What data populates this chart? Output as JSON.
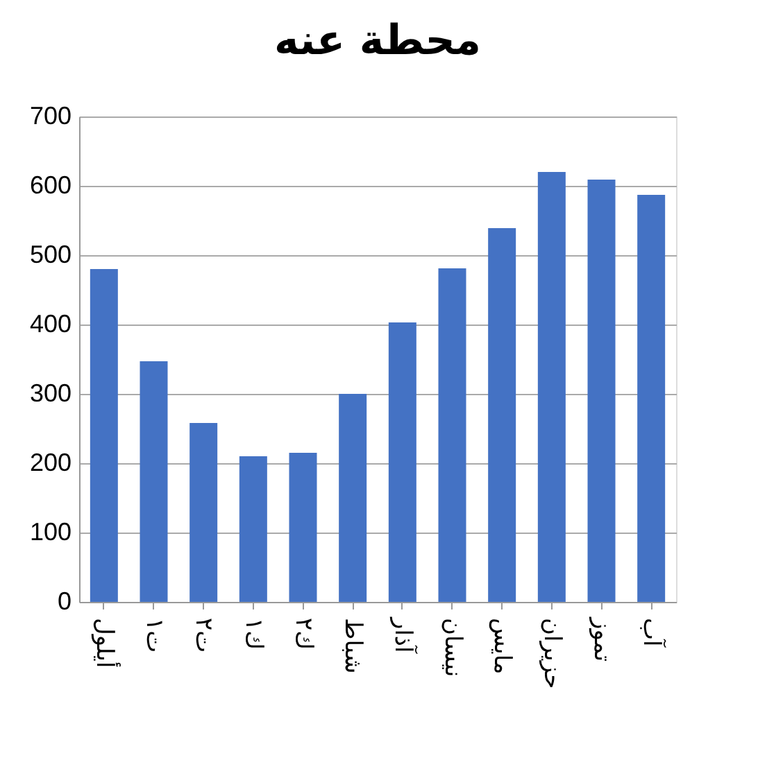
{
  "chart_data": {
    "type": "bar",
    "title": "محطة عنه",
    "categories": [
      "أيلول",
      "ت١",
      "ت٢",
      "ك١",
      "ك٢",
      "شباط",
      "آذار",
      "نيسان",
      "مايس",
      "حزيران",
      "تموز",
      "آب"
    ],
    "values": [
      480,
      347,
      258,
      210,
      215,
      300,
      403,
      481,
      539,
      620,
      609,
      587
    ],
    "color": "#4472c4",
    "ylim": [
      0,
      700
    ],
    "yticks": [
      0,
      100,
      200,
      300,
      400,
      500,
      600,
      700
    ],
    "grid": "y"
  }
}
